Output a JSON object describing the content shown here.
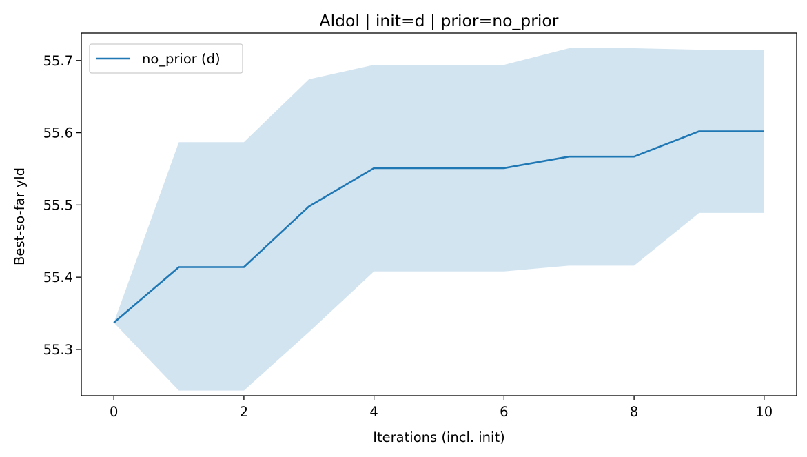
{
  "chart_data": {
    "type": "line",
    "title": "Aldol | init=d | prior=no_prior",
    "xlabel": "Iterations (incl. init)",
    "ylabel": "Best-so-far yld",
    "xlim": [
      -0.5,
      10.5
    ],
    "ylim": [
      55.236,
      55.738
    ],
    "xticks": [
      0,
      2,
      4,
      6,
      8,
      10
    ],
    "xtick_labels": [
      "0",
      "2",
      "4",
      "6",
      "8",
      "10"
    ],
    "yticks": [
      55.3,
      55.4,
      55.5,
      55.6,
      55.7
    ],
    "ytick_labels": [
      "55.3",
      "55.4",
      "55.5",
      "55.6",
      "55.7"
    ],
    "grid": false,
    "legend_position": "top-left",
    "x": [
      0,
      1,
      2,
      3,
      4,
      5,
      6,
      7,
      8,
      9,
      10
    ],
    "series": [
      {
        "name": "no_prior (d)",
        "color": "#1f77b4",
        "values": [
          55.337,
          55.414,
          55.414,
          55.498,
          55.551,
          55.551,
          55.551,
          55.567,
          55.567,
          55.602,
          55.602
        ],
        "band_lower": [
          55.337,
          55.243,
          55.243,
          55.324,
          55.408,
          55.408,
          55.408,
          55.416,
          55.416,
          55.489,
          55.489
        ],
        "band_upper": [
          55.337,
          55.587,
          55.587,
          55.674,
          55.694,
          55.694,
          55.694,
          55.717,
          55.717,
          55.715,
          55.715
        ],
        "band_color": "#1f77b4",
        "band_opacity": 0.2
      }
    ]
  }
}
